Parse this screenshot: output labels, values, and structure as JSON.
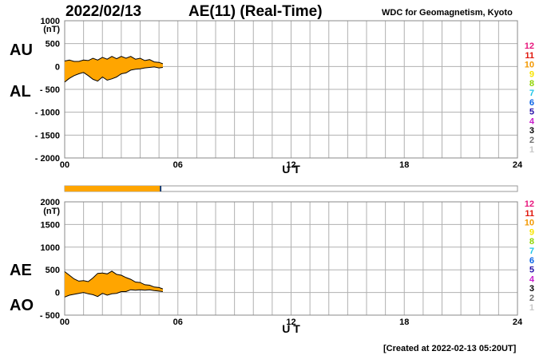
{
  "header": {
    "date": "2022/02/13",
    "title": "AE(11) (Real-Time)",
    "credit": "WDC for Geomagnetism, Kyoto"
  },
  "footer": {
    "created": "[Created at 2022-02-13 05:20UT]"
  },
  "colors": {
    "fill": "#ffa500",
    "grid": "#b0b0b0",
    "coverage_bar": "#ffa500",
    "coverage_marker": "#1a3a6a"
  },
  "coverage_bar": {
    "fraction": 0.21
  },
  "station_legend": [
    {
      "label": "12",
      "color": "#e8177d"
    },
    {
      "label": "11",
      "color": "#e0180e"
    },
    {
      "label": "10",
      "color": "#f39800"
    },
    {
      "label": "9",
      "color": "#f8e400"
    },
    {
      "label": "8",
      "color": "#8fd400"
    },
    {
      "label": "7",
      "color": "#22c6e8"
    },
    {
      "label": "6",
      "color": "#0a64e6"
    },
    {
      "label": "5",
      "color": "#2812a8"
    },
    {
      "label": "4",
      "color": "#c81ecc"
    },
    {
      "label": "3",
      "color": "#000000"
    },
    {
      "label": "2",
      "color": "#707070"
    },
    {
      "label": "1",
      "color": "#c8c8c8"
    }
  ],
  "chart_data": [
    {
      "type": "area",
      "id": "au-al",
      "labels": {
        "upper": "AU",
        "lower": "AL"
      },
      "unit": "(nT)",
      "xlabel": "U T",
      "xlim": [
        0,
        24
      ],
      "xticks": [
        "00",
        "06",
        "12",
        "18",
        "24"
      ],
      "ylim": [
        -2000,
        1000
      ],
      "yticks": [
        {
          "v": 1000,
          "t": "1000"
        },
        {
          "v": 500,
          "t": "500"
        },
        {
          "v": 0,
          "t": "0"
        },
        {
          "v": -500,
          "t": "- 500"
        },
        {
          "v": -1000,
          "t": "- 1000"
        },
        {
          "v": -1500,
          "t": "- 1500"
        },
        {
          "v": -2000,
          "t": "- 2000"
        }
      ],
      "x": [
        0,
        0.25,
        0.5,
        0.75,
        1.0,
        1.25,
        1.5,
        1.75,
        2.0,
        2.25,
        2.5,
        2.75,
        3.0,
        3.25,
        3.5,
        3.75,
        4.0,
        4.25,
        4.5,
        4.75,
        5.0,
        5.2
      ],
      "series": [
        {
          "name": "AU",
          "values": [
            120,
            140,
            110,
            110,
            140,
            130,
            180,
            140,
            200,
            160,
            220,
            170,
            220,
            180,
            220,
            160,
            180,
            130,
            150,
            100,
            90,
            60
          ]
        },
        {
          "name": "AL",
          "values": [
            -340,
            -260,
            -200,
            -160,
            -130,
            -200,
            -280,
            -320,
            -230,
            -300,
            -270,
            -230,
            -160,
            -140,
            -80,
            -60,
            -50,
            -30,
            -20,
            -10,
            -30,
            -20
          ]
        }
      ]
    },
    {
      "type": "area",
      "id": "ae-ao",
      "labels": {
        "upper": "AE",
        "lower": "AO"
      },
      "unit": "(nT)",
      "xlabel": "U T",
      "xlim": [
        0,
        24
      ],
      "xticks": [
        "00",
        "06",
        "12",
        "18",
        "24"
      ],
      "ylim": [
        -500,
        2000
      ],
      "yticks": [
        {
          "v": 2000,
          "t": "2000"
        },
        {
          "v": 1500,
          "t": "1500"
        },
        {
          "v": 1000,
          "t": "1000"
        },
        {
          "v": 500,
          "t": "500"
        },
        {
          "v": 0,
          "t": "0"
        },
        {
          "v": -500,
          "t": "- 500"
        }
      ],
      "x": [
        0,
        0.25,
        0.5,
        0.75,
        1.0,
        1.25,
        1.5,
        1.75,
        2.0,
        2.25,
        2.5,
        2.75,
        3.0,
        3.25,
        3.5,
        3.75,
        4.0,
        4.25,
        4.5,
        4.75,
        5.0,
        5.2
      ],
      "series": [
        {
          "name": "AE",
          "values": [
            460,
            380,
            300,
            250,
            260,
            240,
            320,
            420,
            430,
            410,
            470,
            400,
            380,
            330,
            290,
            230,
            220,
            170,
            160,
            120,
            110,
            80
          ]
        },
        {
          "name": "AO",
          "values": [
            -100,
            -60,
            -40,
            -20,
            0,
            -30,
            -50,
            -90,
            -20,
            -60,
            -30,
            -20,
            20,
            20,
            60,
            50,
            60,
            50,
            60,
            40,
            30,
            20
          ]
        }
      ]
    }
  ]
}
